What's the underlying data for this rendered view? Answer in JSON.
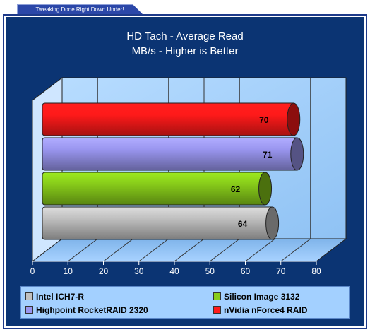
{
  "banner": {
    "text": "Tweaking Done Right Down Under!"
  },
  "chart_data": {
    "type": "bar",
    "orientation": "horizontal",
    "title": "HD Tach - Average Read",
    "subtitle": "MB/s - Higher is Better",
    "xlim": [
      0,
      80
    ],
    "xticks": [
      "0",
      "10",
      "20",
      "30",
      "40",
      "50",
      "60",
      "70",
      "80"
    ],
    "grid": true,
    "legend_position": "bottom",
    "series": [
      {
        "name": "nVidia nForce4 RAID",
        "value": 70,
        "label": "70",
        "color": "#ff1a1a"
      },
      {
        "name": "Highpoint RocketRAID 2320",
        "value": 71,
        "label": "71",
        "color": "#9a96f0"
      },
      {
        "name": "Silicon Image 3132",
        "value": 62,
        "label": "62",
        "color": "#88cc1a"
      },
      {
        "name": "Intel ICH7-R",
        "value": 64,
        "label": "64",
        "color": "#c0c0c0"
      }
    ],
    "legend": [
      {
        "name": "Intel ICH7-R",
        "color": "#c0c0c0"
      },
      {
        "name": "Silicon Image 3132",
        "color": "#88cc1a"
      },
      {
        "name": "Highpoint RocketRAID 2320",
        "color": "#9a96f0"
      },
      {
        "name": "nVidia nForce4 RAID",
        "color": "#ff1a1a"
      }
    ]
  }
}
